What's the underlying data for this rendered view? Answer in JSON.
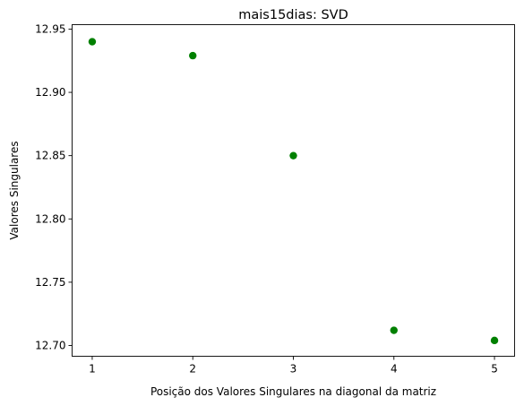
{
  "chart_data": {
    "type": "scatter",
    "title": "mais15dias: SVD",
    "xlabel": "Posição dos Valores Singulares na diagonal da matriz",
    "ylabel": "Valores Singulares",
    "xlim": [
      0.8,
      5.2
    ],
    "ylim": [
      12.6915,
      12.9535
    ],
    "x_ticks": [
      1,
      2,
      3,
      4,
      5
    ],
    "x_tick_labels": [
      "1",
      "2",
      "3",
      "4",
      "5"
    ],
    "y_ticks": [
      12.7,
      12.75,
      12.8,
      12.85,
      12.9,
      12.95
    ],
    "y_tick_labels": [
      "12.70",
      "12.75",
      "12.80",
      "12.85",
      "12.90",
      "12.95"
    ],
    "grid": false,
    "series": [
      {
        "x": [
          1,
          2,
          3,
          4,
          5
        ],
        "values": [
          12.94,
          12.929,
          12.85,
          12.712,
          12.704
        ],
        "color": "#008000"
      }
    ]
  }
}
